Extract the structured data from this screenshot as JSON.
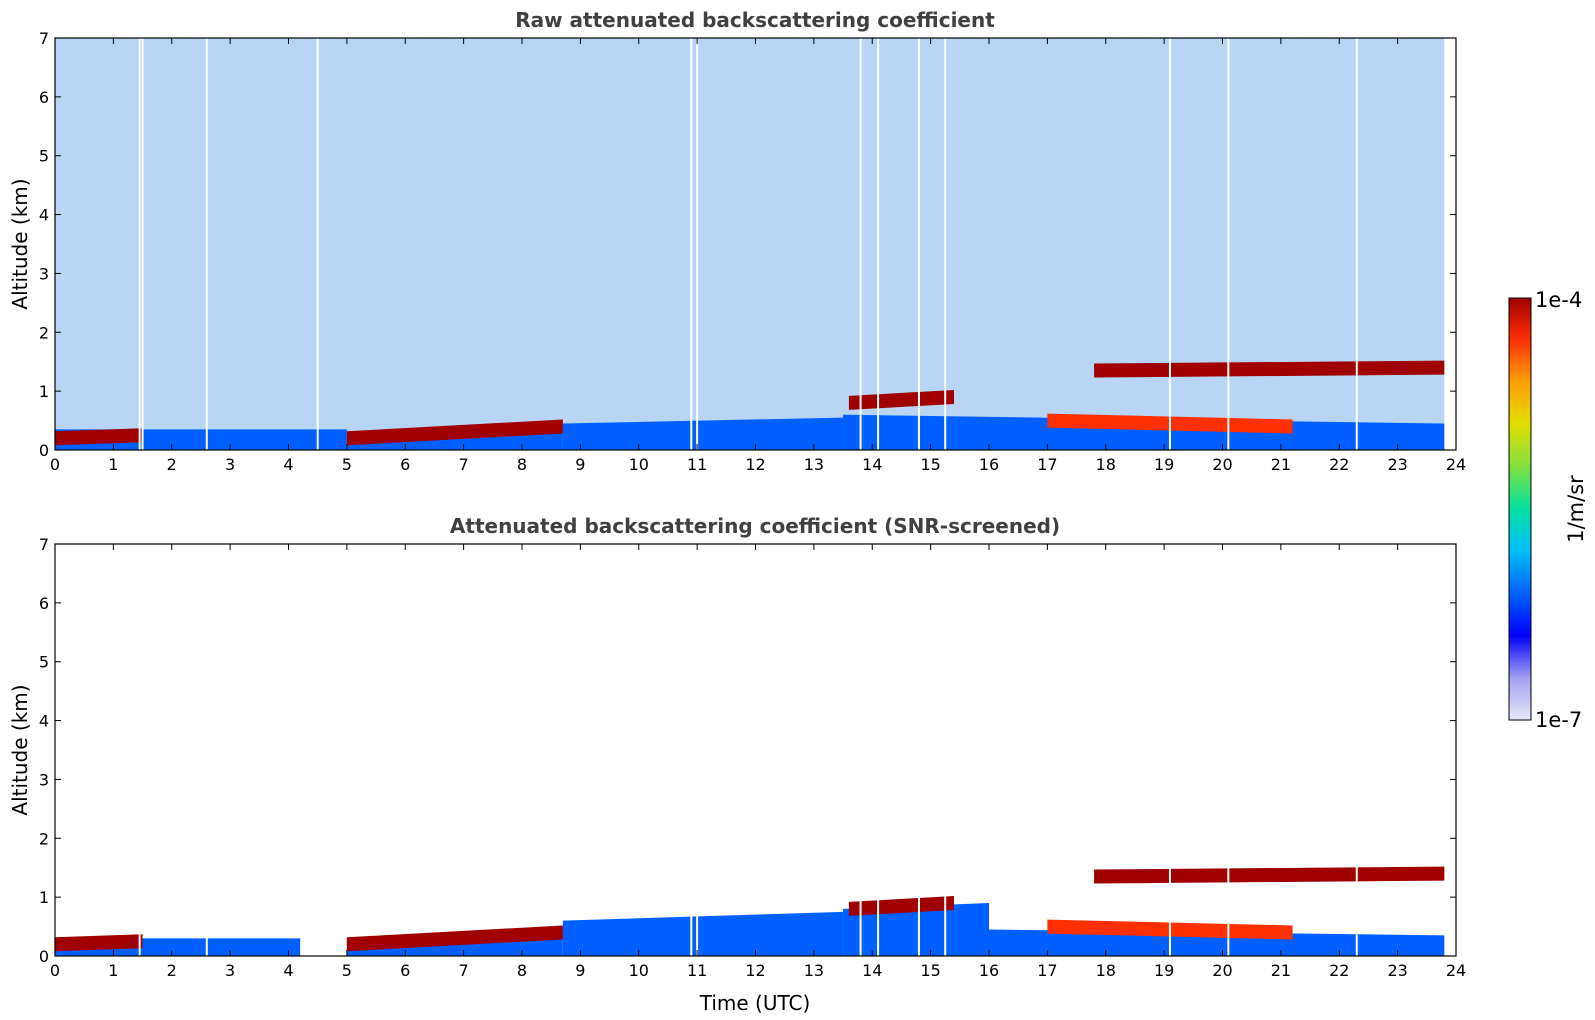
{
  "chart_data": [
    {
      "type": "heatmap",
      "title": "Raw attenuated backscattering coefficient",
      "xlabel": "",
      "ylabel": "Altitude (km)",
      "xlim": [
        0,
        24
      ],
      "ylim": [
        0,
        7
      ],
      "x_ticks": [
        "0",
        "1",
        "2",
        "3",
        "4",
        "5",
        "6",
        "7",
        "8",
        "9",
        "10",
        "11",
        "12",
        "13",
        "14",
        "15",
        "16",
        "17",
        "18",
        "19",
        "20",
        "21",
        "22",
        "23",
        "24"
      ],
      "y_ticks": [
        "0",
        "1",
        "2",
        "3",
        "4",
        "5",
        "6",
        "7"
      ],
      "data_extent_x": [
        0,
        23.8
      ],
      "features": [
        {
          "name": "boundary layer",
          "value": "7e-7",
          "segments": [
            [
              0,
              0.35,
              1.5,
              0.35
            ],
            [
              1.5,
              0.35,
              5.0,
              0.35
            ],
            [
              5.0,
              0.3,
              8.7,
              0.4
            ],
            [
              8.7,
              0.45,
              13.5,
              0.55
            ],
            [
              13.5,
              0.6,
              23.8,
              0.45
            ]
          ]
        },
        {
          "name": "aerosol layer",
          "value": "9e-5",
          "segments": [
            [
              0,
              0.2,
              1.5,
              0.25
            ],
            [
              5.0,
              0.2,
              8.7,
              0.4
            ],
            [
              13.6,
              0.8,
              15.4,
              0.9
            ],
            [
              17.8,
              1.35,
              23.8,
              1.4
            ]
          ]
        },
        {
          "name": "elevated layer",
          "value": "5e-5",
          "segments": [
            [
              17.0,
              0.5,
              21.2,
              0.4
            ]
          ]
        }
      ],
      "data_gaps": [
        1.45,
        1.5,
        2.6,
        4.5,
        10.9,
        11.0,
        13.8,
        14.1,
        14.8,
        15.25,
        19.1,
        20.1,
        22.3
      ]
    },
    {
      "type": "heatmap",
      "title": "Attenuated backscattering coefficient (SNR-screened)",
      "xlabel": "Time (UTC)",
      "ylabel": "Altitude (km)",
      "xlim": [
        0,
        24
      ],
      "ylim": [
        0,
        7
      ],
      "x_ticks": [
        "0",
        "1",
        "2",
        "3",
        "4",
        "5",
        "6",
        "7",
        "8",
        "9",
        "10",
        "11",
        "12",
        "13",
        "14",
        "15",
        "16",
        "17",
        "18",
        "19",
        "20",
        "21",
        "22",
        "23",
        "24"
      ],
      "y_ticks": [
        "0",
        "1",
        "2",
        "3",
        "4",
        "5",
        "6",
        "7"
      ],
      "data_extent_x": [
        0,
        23.8
      ],
      "features": [
        {
          "name": "boundary layer",
          "value": "7e-7",
          "segments": [
            [
              0,
              0.3,
              4.2,
              0.3
            ],
            [
              5.0,
              0.3,
              8.7,
              0.4
            ],
            [
              8.7,
              0.6,
              13.5,
              0.75
            ],
            [
              13.5,
              0.8,
              16.0,
              0.9
            ],
            [
              16.0,
              0.45,
              23.8,
              0.35
            ]
          ]
        },
        {
          "name": "aerosol layer",
          "value": "9e-5",
          "segments": [
            [
              0,
              0.2,
              1.5,
              0.25
            ],
            [
              5.0,
              0.2,
              8.7,
              0.4
            ],
            [
              13.6,
              0.8,
              15.4,
              0.9
            ],
            [
              17.8,
              1.35,
              23.8,
              1.4
            ]
          ]
        },
        {
          "name": "elevated layer",
          "value": "5e-5",
          "segments": [
            [
              17.0,
              0.5,
              21.2,
              0.4
            ]
          ]
        }
      ],
      "data_gaps": [
        1.45,
        2.6,
        4.5,
        10.9,
        11.0,
        13.8,
        14.1,
        14.8,
        15.25,
        19.1,
        20.1,
        22.3
      ]
    }
  ],
  "colorbar": {
    "max_label": "1e-4",
    "min_label": "1e-7",
    "label": "1/m/sr",
    "scale": "log",
    "colors": [
      "#e8e8f8",
      "#a0a0f0",
      "#0000ff",
      "#0060ff",
      "#00c0ff",
      "#00e0a0",
      "#80e040",
      "#e0e000",
      "#ffa000",
      "#ff3000",
      "#a00000"
    ]
  }
}
